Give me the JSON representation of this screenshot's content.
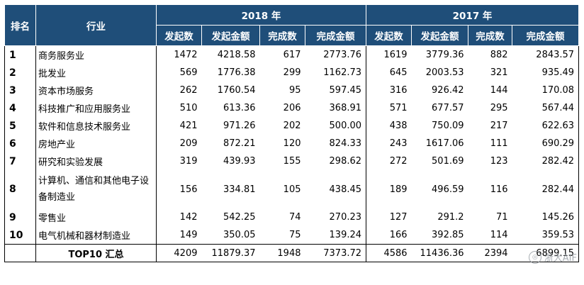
{
  "headers": {
    "rank": "排名",
    "industry": "行业",
    "year_a": "2018 年",
    "year_b": "2017 年",
    "cols": [
      "发起数",
      "发起金额",
      "完成数",
      "完成金额"
    ]
  },
  "rows": [
    {
      "rank": "1",
      "industry": "商务服务业",
      "a": [
        "1472",
        "4218.58",
        "617",
        "2773.76"
      ],
      "b": [
        "1619",
        "3779.36",
        "882",
        "2843.57"
      ]
    },
    {
      "rank": "2",
      "industry": "批发业",
      "a": [
        "569",
        "1776.38",
        "299",
        "1162.73"
      ],
      "b": [
        "645",
        "2003.53",
        "321",
        "935.49"
      ]
    },
    {
      "rank": "3",
      "industry": "资本市场服务",
      "a": [
        "262",
        "1760.54",
        "95",
        "597.45"
      ],
      "b": [
        "316",
        "926.42",
        "144",
        "170.08"
      ]
    },
    {
      "rank": "4",
      "industry": "科技推广和应用服务业",
      "a": [
        "510",
        "613.36",
        "206",
        "368.91"
      ],
      "b": [
        "571",
        "677.57",
        "295",
        "567.44"
      ]
    },
    {
      "rank": "5",
      "industry": "软件和信息技术服务业",
      "a": [
        "421",
        "971.26",
        "202",
        "500.00"
      ],
      "b": [
        "438",
        "750.09",
        "217",
        "622.63"
      ]
    },
    {
      "rank": "6",
      "industry": "房地产业",
      "a": [
        "209",
        "872.21",
        "120",
        "824.33"
      ],
      "b": [
        "243",
        "1617.06",
        "111",
        "690.29"
      ]
    },
    {
      "rank": "7",
      "industry": "研究和实验发展",
      "a": [
        "319",
        "439.93",
        "155",
        "298.62"
      ],
      "b": [
        "272",
        "501.69",
        "123",
        "282.42"
      ]
    },
    {
      "rank": "8",
      "industry": "计算机、通信和其他电子设备制造业",
      "a": [
        "156",
        "334.81",
        "105",
        "438.45"
      ],
      "b": [
        "189",
        "496.59",
        "116",
        "282.44"
      ]
    },
    {
      "rank": "9",
      "industry": "零售业",
      "a": [
        "142",
        "542.25",
        "74",
        "270.23"
      ],
      "b": [
        "127",
        "291.2",
        "71",
        "145.26"
      ]
    },
    {
      "rank": "10",
      "industry": "电气机械和器材制造业",
      "a": [
        "149",
        "350.05",
        "75",
        "139.24"
      ],
      "b": [
        "166",
        "392.85",
        "114",
        "359.53"
      ]
    }
  ],
  "total": {
    "label": "TOP10 汇总",
    "a": [
      "4209",
      "11879.37",
      "1948",
      "7373.72"
    ],
    "b": [
      "4586",
      "11436.36",
      "2394",
      "6899.15"
    ]
  },
  "watermark": "浙大AIF",
  "colors": {
    "header_bg": "#1f4e79",
    "header_text": "#ffffff"
  }
}
